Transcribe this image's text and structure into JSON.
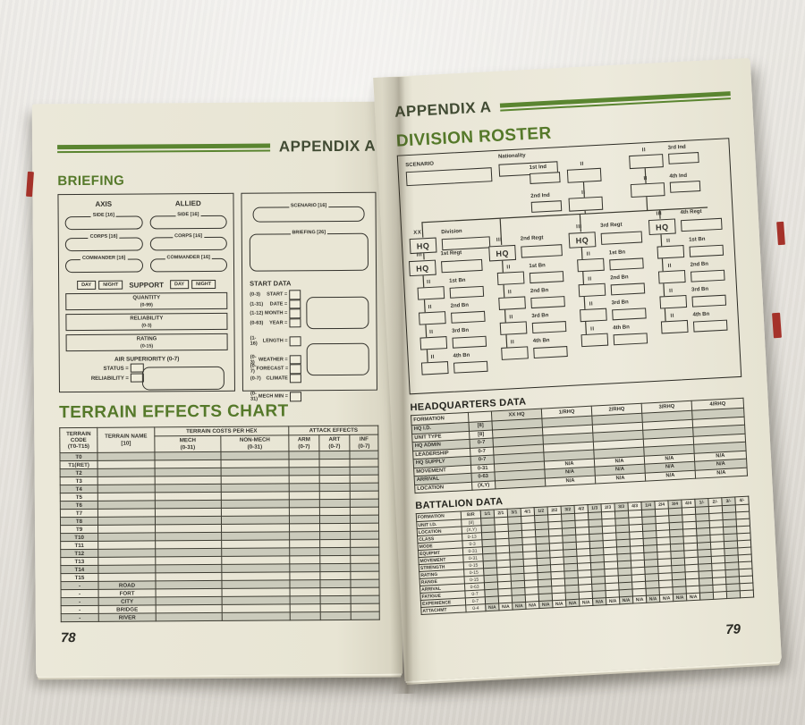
{
  "appendix_label": "APPENDIX A",
  "colors": {
    "accent_green": "#5a8530",
    "paper_cream": "#e9e6d5",
    "row_shade": "#cbcbbc"
  },
  "left_page": {
    "page_number": "78",
    "briefing": {
      "title": "BRIEFING",
      "columns": [
        {
          "header": "AXIS",
          "fields": [
            "SIDE [16]",
            "CORPS [16]",
            "COMMANDER [16]"
          ]
        },
        {
          "header": "ALLIED",
          "fields": [
            "SIDE [16]",
            "CORPS [16]",
            "COMMANDER [16]"
          ]
        }
      ],
      "day_label": "DAY",
      "night_label": "NIGHT",
      "support_label": "SUPPORT",
      "support_boxes": [
        {
          "name": "QUANTITY",
          "range": "(0-99)"
        },
        {
          "name": "RELIABILITY",
          "range": "(0-3)"
        },
        {
          "name": "RATING",
          "range": "(0-15)"
        }
      ],
      "air_superiority_label": "AIR SUPERIORITY (0-7)",
      "status_label": "STATUS =",
      "reliability_label": "RELIABILITY =",
      "scenario_legend": "SCENARIO [16]",
      "briefing_legend": "BRIEFING [26]",
      "start_data_title": "START DATA",
      "start_rows": [
        {
          "range": "(0-3)",
          "label": "START =",
          "group": 1
        },
        {
          "range": "(1-31)",
          "label": "DATE =",
          "group": 1
        },
        {
          "range": "(1-12)",
          "label": "MONTH =",
          "group": 1
        },
        {
          "range": "(0-63)",
          "label": "YEAR =",
          "group": 1
        },
        {
          "range": "(1-16)",
          "label": "LENGTH =",
          "group": 2
        },
        {
          "range": "(0-3)",
          "label": "WEATHER =",
          "group": 3
        },
        {
          "range": "(0-7)",
          "label": "FORECAST =",
          "group": 3
        },
        {
          "range": "(0-7)",
          "label": "CLIMATE",
          "group": 3
        },
        {
          "range": "(0-31)",
          "label": "MECH MIN =",
          "group": 4
        }
      ]
    },
    "terrain_chart": {
      "title": "TERRAIN EFFECTS CHART",
      "header": {
        "code": [
          "TERRAIN CODE",
          "(T0-T15)"
        ],
        "name": [
          "TERRAIN NAME",
          "[10]"
        ],
        "costs": "TERRAIN COSTS PER HEX",
        "mech": [
          "MECH",
          "(0-31)"
        ],
        "nonmech": [
          "NON-MECH",
          "(0-31)"
        ],
        "attack": "ATTACK EFFECTS",
        "arm": [
          "ARM",
          "(0-7)"
        ],
        "art": [
          "ART",
          "(0-7)"
        ],
        "inf": [
          "INF",
          "(0-7)"
        ]
      },
      "rows": [
        {
          "code": "T0",
          "name": ""
        },
        {
          "code": "T1(RET)",
          "name": ""
        },
        {
          "code": "T2",
          "name": ""
        },
        {
          "code": "T3",
          "name": ""
        },
        {
          "code": "T4",
          "name": ""
        },
        {
          "code": "T5",
          "name": ""
        },
        {
          "code": "T6",
          "name": ""
        },
        {
          "code": "T7",
          "name": ""
        },
        {
          "code": "T8",
          "name": ""
        },
        {
          "code": "T9",
          "name": ""
        },
        {
          "code": "T10",
          "name": ""
        },
        {
          "code": "T11",
          "name": ""
        },
        {
          "code": "T12",
          "name": ""
        },
        {
          "code": "T13",
          "name": ""
        },
        {
          "code": "T14",
          "name": ""
        },
        {
          "code": "T15",
          "name": ""
        },
        {
          "code": "-",
          "name": "ROAD"
        },
        {
          "code": "-",
          "name": "FORT"
        },
        {
          "code": "-",
          "name": "CITY"
        },
        {
          "code": "-",
          "name": "BRIDGE"
        },
        {
          "code": "-",
          "name": "RIVER"
        }
      ]
    }
  },
  "right_page": {
    "page_number": "79",
    "roster": {
      "title": "DIVISION ROSTER",
      "scenario_label": "SCENARIO",
      "nationality_label": "Nationality",
      "division": {
        "symbol": "XX",
        "hq": "HQ",
        "label": "Division"
      },
      "independents": [
        {
          "symbol": "II",
          "label": "1st Ind"
        },
        {
          "symbol": "II",
          "label": "2nd Ind"
        },
        {
          "symbol": "II",
          "label": "3rd Ind"
        },
        {
          "symbol": "II",
          "label": "4th Ind"
        }
      ],
      "regiments": [
        {
          "symbol": "III",
          "hq": "HQ",
          "label": "1st Regt",
          "bn_symbol": "II",
          "battalions": [
            "1st Bn",
            "2nd Bn",
            "3rd Bn",
            "4th Bn"
          ]
        },
        {
          "symbol": "III",
          "hq": "HQ",
          "label": "2nd Regt",
          "bn_symbol": "II",
          "battalions": [
            "1st Bn",
            "2nd Bn",
            "3rd Bn",
            "4th Bn"
          ]
        },
        {
          "symbol": "III",
          "hq": "HQ",
          "label": "3rd Regt",
          "bn_symbol": "II",
          "battalions": [
            "1st Bn",
            "2nd Bn",
            "3rd Bn",
            "4th Bn"
          ]
        },
        {
          "symbol": "III",
          "hq": "HQ",
          "label": "4th Regt",
          "bn_symbol": "II",
          "battalions": [
            "1st Bn",
            "2nd Bn",
            "3rd Bn",
            "4th Bn"
          ]
        }
      ]
    },
    "hq_data": {
      "title": "HEADQUARTERS DATA",
      "formation_header": "FORMATION",
      "col_headers": [
        "XX HQ",
        "1/RHQ",
        "2/RHQ",
        "3/RHQ",
        "4/RHQ"
      ],
      "rows": [
        {
          "label": "HQ I.D.",
          "range": "[8]",
          "cells": [
            "",
            "",
            "",
            "",
            ""
          ]
        },
        {
          "label": "UNIT TYPE",
          "range": "[8]",
          "cells": [
            "",
            "",
            "",
            "",
            ""
          ]
        },
        {
          "label": "HQ ADMIN",
          "range": "0-7",
          "cells": [
            "",
            "",
            "",
            "",
            ""
          ]
        },
        {
          "label": "LEADERSHIP",
          "range": "0-7",
          "cells": [
            "",
            "",
            "",
            "",
            ""
          ]
        },
        {
          "label": "HQ SUPPLY",
          "range": "0-7",
          "cells": [
            "",
            "",
            "",
            "",
            ""
          ]
        },
        {
          "label": "MOVEMENT",
          "range": "0-31",
          "cells": [
            "",
            "N/A",
            "N/A",
            "N/A",
            "N/A"
          ]
        },
        {
          "label": "ARRIVAL",
          "range": "0-63",
          "cells": [
            "",
            "N/A",
            "N/A",
            "N/A",
            "N/A"
          ]
        },
        {
          "label": "LOCATION",
          "range": "(X,Y)",
          "cells": [
            "",
            "N/A",
            "N/A",
            "N/A",
            "N/A"
          ]
        }
      ]
    },
    "battalion_data": {
      "title": "BATTALION DATA",
      "formation_header": "FORMATION",
      "range_header": "B/R",
      "na_text": "N/A",
      "col_headers": [
        "1/1",
        "2/1",
        "3/1",
        "4/1",
        "1/2",
        "2/2",
        "3/2",
        "4/2",
        "1/3",
        "2/3",
        "3/3",
        "4/3",
        "1/4",
        "2/4",
        "3/4",
        "4/4",
        "1/-",
        "2/-",
        "3/-",
        "4/-"
      ],
      "rows": [
        {
          "label": "UNIT I.D.",
          "range": "[8]",
          "na_cols": 0
        },
        {
          "label": "LOCATION",
          "range": "(X,Y)",
          "na_cols": 0
        },
        {
          "label": "CLASS",
          "range": "0-13",
          "na_cols": 0
        },
        {
          "label": "MODE",
          "range": "0-3",
          "na_cols": 0
        },
        {
          "label": "EQUIPMT",
          "range": "0-31",
          "na_cols": 0
        },
        {
          "label": "MOVEMENT",
          "range": "0-31",
          "na_cols": 0
        },
        {
          "label": "STRENGTH",
          "range": "0-15",
          "na_cols": 0
        },
        {
          "label": "RATING",
          "range": "0-15",
          "na_cols": 0
        },
        {
          "label": "RANGE",
          "range": "0-15",
          "na_cols": 0
        },
        {
          "label": "ARRIVAL",
          "range": "0-63",
          "na_cols": 0
        },
        {
          "label": "FATIGUE",
          "range": "0-7",
          "na_cols": 0
        },
        {
          "label": "EXPERIENCE",
          "range": "0-7",
          "na_cols": 0
        },
        {
          "label": "ATTACHMT",
          "range": "0-4",
          "na_cols": 16
        }
      ]
    }
  }
}
